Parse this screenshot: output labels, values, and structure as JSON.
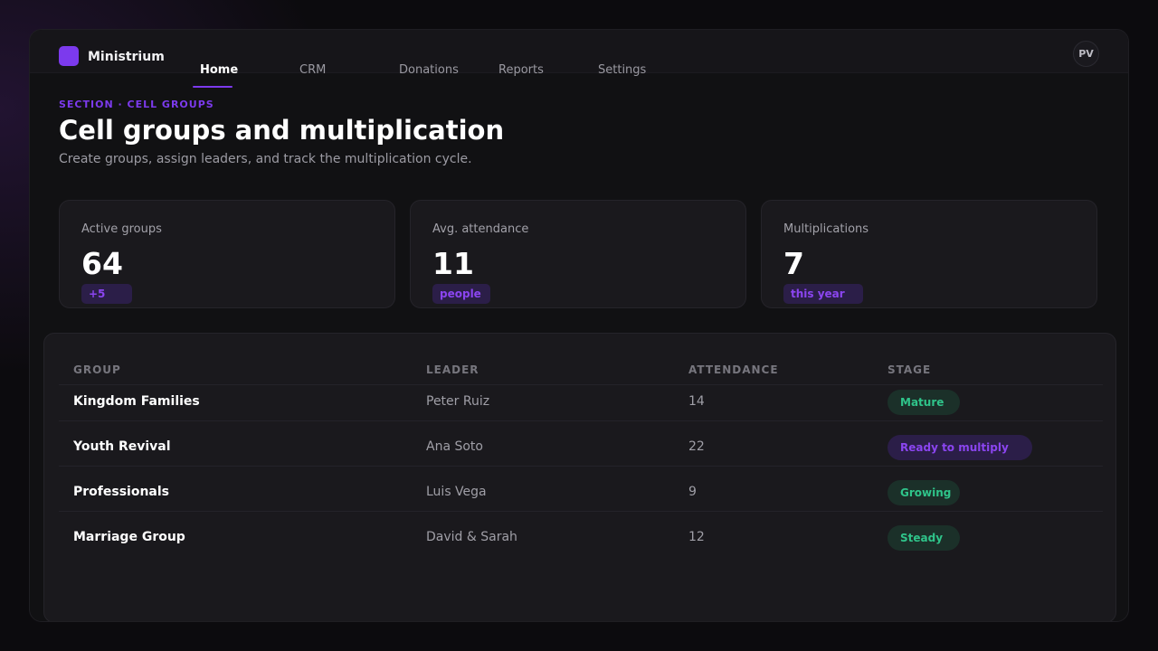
{
  "app": {
    "name": "Ministrium",
    "avatar_initials": "PV"
  },
  "nav": {
    "items": [
      "Home",
      "CRM",
      "Donations",
      "Reports",
      "Settings"
    ],
    "active": "Home"
  },
  "header": {
    "eyebrow": "SECTION · CELL GROUPS",
    "title": "Cell groups and multiplication",
    "subtitle": "Create groups, assign leaders, and track the multiplication cycle."
  },
  "stats": [
    {
      "label": "Active groups",
      "value": "64",
      "badge": "+5"
    },
    {
      "label": "Avg. attendance",
      "value": "11",
      "badge": "people"
    },
    {
      "label": "Multiplications",
      "value": "7",
      "badge": "this year"
    }
  ],
  "table": {
    "columns": [
      "GROUP",
      "LEADER",
      "ATTENDANCE",
      "STAGE"
    ],
    "rows": [
      {
        "group": "Kingdom Families",
        "leader": "Peter Ruiz",
        "attendance": "14",
        "stage": "Mature",
        "stage_color": "green"
      },
      {
        "group": "Youth Revival",
        "leader": "Ana Soto",
        "attendance": "22",
        "stage": "Ready to multiply",
        "stage_color": "purple"
      },
      {
        "group": "Professionals",
        "leader": "Luis Vega",
        "attendance": "9",
        "stage": "Growing",
        "stage_color": "green"
      },
      {
        "group": "Marriage Group",
        "leader": "David & Sarah",
        "attendance": "12",
        "stage": "Steady",
        "stage_color": "green"
      }
    ]
  },
  "colors": {
    "accent": "#7c3aed",
    "success": "#2fc48a",
    "background": "#111113"
  }
}
